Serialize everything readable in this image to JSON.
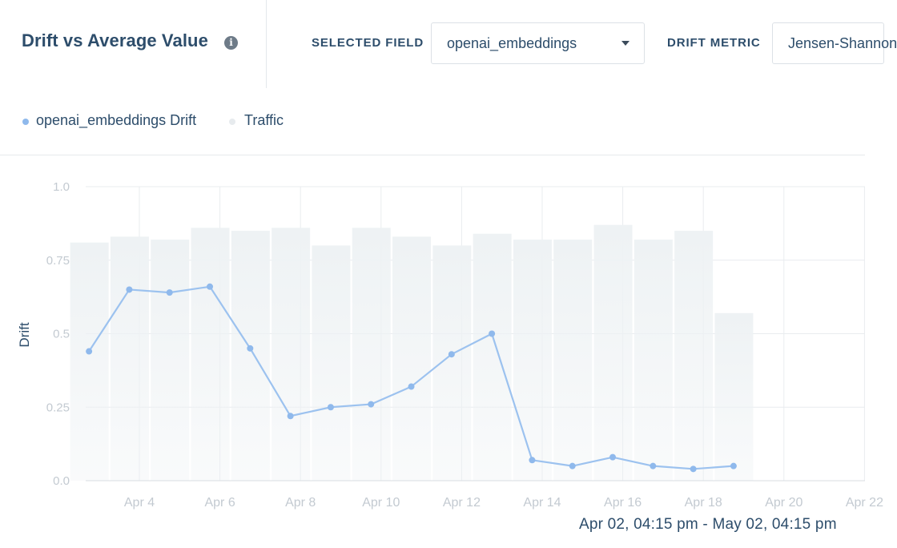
{
  "header": {
    "title": "Drift vs Average Value",
    "selected_field_label": "SELECTED FIELD",
    "selected_field_value": "openai_embeddings",
    "drift_metric_label": "DRIFT METRIC",
    "drift_metric_value": "Jensen-Shannon"
  },
  "legend": {
    "drift": "openai_embeddings Drift",
    "traffic": "Traffic"
  },
  "colors": {
    "drift_line": "#9cc2ef",
    "drift_point": "#8fb9ec",
    "traffic_bar": "#eef2f4",
    "grid": "#e9ecef",
    "tick": "#c3cad1",
    "text": "#2d4d6b"
  },
  "time_range": "Apr 02, 04:15 pm - May 02, 04:15 pm",
  "chart_data": {
    "type": "line",
    "ylabel": "Drift",
    "ylim": [
      0,
      1.0
    ],
    "yticks": [
      "0.0",
      "0.25",
      "0.5",
      "0.75",
      "1.0"
    ],
    "ytick_values": [
      0,
      0.25,
      0.5,
      0.75,
      1.0
    ],
    "xticks": [
      "Apr 4",
      "Apr 6",
      "Apr 8",
      "Apr 10",
      "Apr 12",
      "Apr 14",
      "Apr 16",
      "Apr 18",
      "Apr 20",
      "Apr 22"
    ],
    "xtick_days": [
      4,
      6,
      8,
      10,
      12,
      14,
      16,
      18,
      20,
      22
    ],
    "xlim_days": [
      2.7,
      22.1
    ],
    "grid": true,
    "legend_position": "top-left",
    "series": [
      {
        "name": "openai_embeddings Drift",
        "kind": "line",
        "x_days": [
          2.75,
          3.75,
          4.75,
          5.75,
          6.75,
          7.75,
          8.75,
          9.75,
          10.75,
          11.75,
          12.75,
          13.75,
          14.75,
          15.75,
          16.75,
          17.75,
          18.75
        ],
        "values": [
          0.44,
          0.65,
          0.64,
          0.66,
          0.45,
          0.22,
          0.25,
          0.26,
          0.32,
          0.43,
          0.5,
          0.07,
          0.05,
          0.08,
          0.05,
          0.04,
          0.05
        ]
      },
      {
        "name": "Traffic",
        "kind": "bar",
        "x_days": [
          2.8,
          3.8,
          4.8,
          5.8,
          6.8,
          7.8,
          8.8,
          9.8,
          10.8,
          11.8,
          12.8,
          13.8,
          14.8,
          15.8,
          16.8,
          17.8,
          18.8
        ],
        "values": [
          0.81,
          0.83,
          0.82,
          0.86,
          0.85,
          0.86,
          0.8,
          0.86,
          0.83,
          0.8,
          0.84,
          0.82,
          0.82,
          0.87,
          0.82,
          0.85,
          0.57
        ]
      }
    ]
  }
}
